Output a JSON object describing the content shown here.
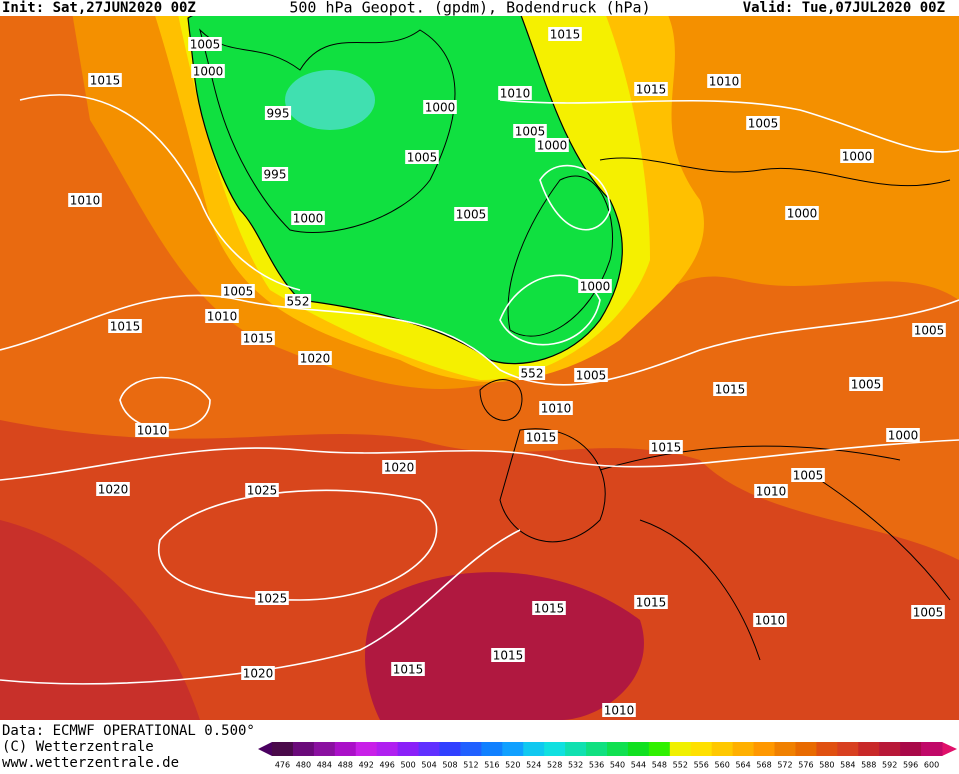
{
  "header": {
    "init": "Init: Sat,27JUN2020 00Z",
    "title": "500 hPa Geopot. (gpdm), Bodendruck (hPa)",
    "valid": "Valid: Tue,07JUL2020 00Z"
  },
  "isobar_labels": [
    "1005",
    "1000",
    "1015",
    "995",
    "995",
    "1000",
    "1000",
    "1005",
    "1005",
    "1015",
    "1010",
    "1005",
    "1000",
    "1015",
    "1010",
    "1005",
    "1000",
    "1000",
    "1010",
    "1005",
    "552",
    "1010",
    "1015",
    "1015",
    "1020",
    "1000",
    "552",
    "1005",
    "1010",
    "1015",
    "1005",
    "1005",
    "1010",
    "1015",
    "1000",
    "1015",
    "1020",
    "1005",
    "1010",
    "1020",
    "1025",
    "1025",
    "1015",
    "1015",
    "1010",
    "1005",
    "1015",
    "1015",
    "1020",
    "1010"
  ],
  "colorbar": {
    "levels": [
      476,
      480,
      484,
      488,
      492,
      496,
      500,
      504,
      508,
      512,
      516,
      520,
      524,
      528,
      532,
      536,
      540,
      544,
      548,
      552,
      556,
      560,
      564,
      568,
      572,
      576,
      580,
      584,
      588,
      592,
      596,
      600
    ],
    "colors": [
      "#4a0a4a",
      "#6a0a7a",
      "#8a10a0",
      "#aa10c8",
      "#c820e8",
      "#b020f0",
      "#8a20f8",
      "#6030ff",
      "#3040ff",
      "#2060ff",
      "#1080ff",
      "#10a0ff",
      "#10c8f0",
      "#10e0e0",
      "#10e0b0",
      "#10e080",
      "#10e050",
      "#10e020",
      "#30f000",
      "#f0f000",
      "#ffe000",
      "#ffc800",
      "#ffb000",
      "#ff9800",
      "#f08000",
      "#e86a00",
      "#e05010",
      "#d84020",
      "#c82828",
      "#b81838",
      "#a80848",
      "#c00868"
    ]
  },
  "footer": {
    "data": "Data: ECMWF OPERATIONAL 0.500°",
    "copyright": "(C) Wetterzentrale",
    "url": "www.wetterzentrale.de"
  }
}
